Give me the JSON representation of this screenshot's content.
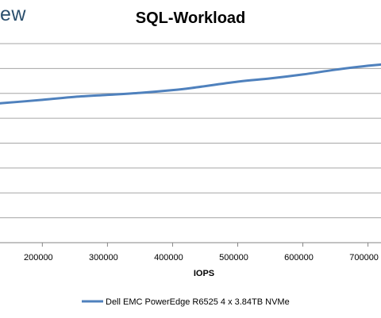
{
  "brand": "ew",
  "chart_data": {
    "type": "line",
    "title": "SQL-Workload",
    "xlabel": "IOPS",
    "ylabel": "",
    "categories": [],
    "x_ticks": [
      200000,
      300000,
      400000,
      500000,
      600000,
      700000
    ],
    "x_tick_labels": [
      "200000",
      "300000",
      "400000",
      "500000",
      "600000",
      "700000"
    ],
    "xlim": [
      135000,
      720000
    ],
    "ylim": [
      0,
      8
    ],
    "grid": true,
    "legend_position": "bottom",
    "line_color": "#4f81bd",
    "grid_color": "#a6a6a6",
    "series": [
      {
        "name": "Dell EMC PowerEdge R6525 4 x 3.84TB NVMe",
        "x": [
          135000,
          200000,
          250000,
          300000,
          350000,
          400000,
          430000,
          500000,
          550000,
          600000,
          650000,
          700000,
          720000
        ],
        "y": [
          5.6,
          5.74,
          5.86,
          5.94,
          6.02,
          6.13,
          6.22,
          6.47,
          6.6,
          6.76,
          6.95,
          7.11,
          7.16
        ]
      }
    ]
  }
}
